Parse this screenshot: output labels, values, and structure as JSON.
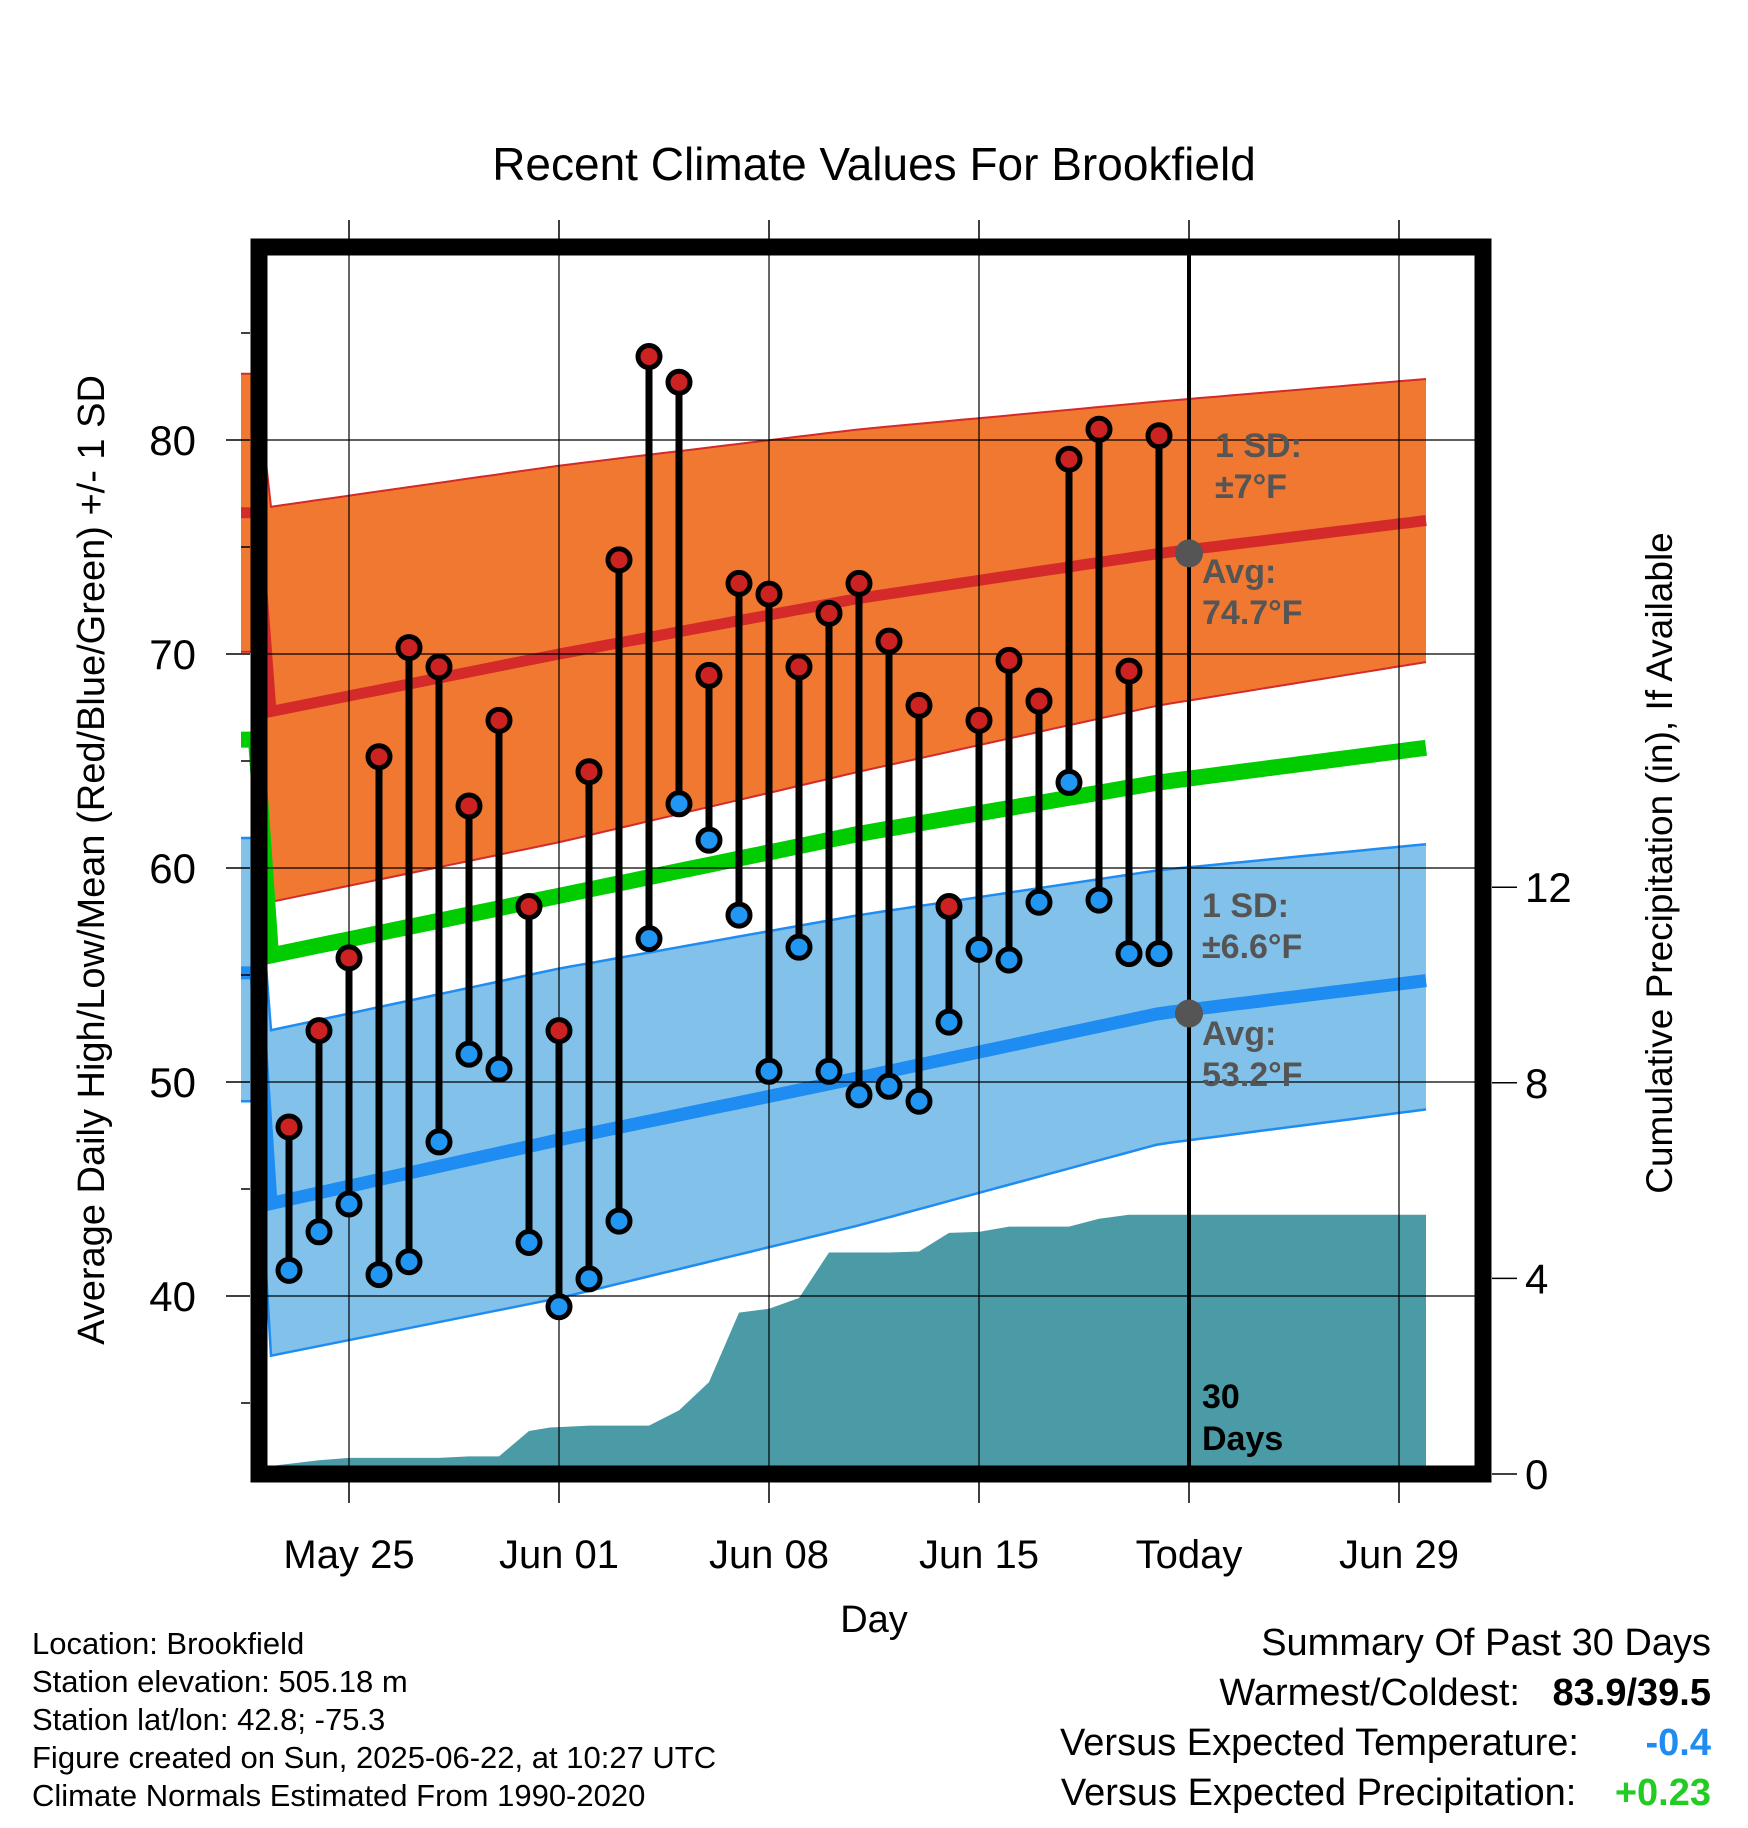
{
  "chart_data": {
    "type": "line",
    "title": "Recent Climate Values For Brookfield",
    "xlabel": "Day",
    "ylabel": "Average Daily High/Low/Mean (Red/Blue/Green) +/- 1 SD",
    "y2label": "Cumulative Precipitation (in), If Available",
    "ylim": [
      30.8,
      90.7
    ],
    "y2lim": [
      -0.07,
      24.1
    ],
    "xlim": [
      -11.75,
      30
    ],
    "yticks": [
      "40",
      "50",
      "60",
      "70",
      "80"
    ],
    "y2ticks": [
      "0",
      "4",
      "8",
      "12"
    ],
    "xticks": [
      {
        "day": 3,
        "label": "May 25"
      },
      {
        "day": 10,
        "label": "Jun 01"
      },
      {
        "day": 17,
        "label": "Jun 08"
      },
      {
        "day": 24,
        "label": "Jun 15"
      },
      {
        "day": 31,
        "label": "Today"
      },
      {
        "day": 38,
        "label": "Jun 29"
      }
    ],
    "today_day": 31,
    "days": [
      1,
      2,
      3,
      4,
      5,
      6,
      7,
      8,
      9,
      10,
      11,
      12,
      13,
      14,
      15,
      16,
      17,
      18,
      19,
      20,
      21,
      22,
      23,
      24,
      25,
      26,
      27,
      28,
      29,
      30
    ],
    "highs": [
      47.9,
      52.4,
      55.8,
      65.2,
      70.3,
      69.4,
      62.9,
      66.9,
      58.2,
      52.4,
      64.5,
      74.4,
      83.9,
      82.7,
      69.0,
      73.3,
      72.8,
      69.4,
      71.9,
      73.3,
      70.6,
      67.6,
      58.2,
      66.9,
      69.7,
      67.8,
      79.1,
      80.5,
      69.2,
      80.2
    ],
    "lows": [
      41.2,
      43.0,
      44.3,
      41.0,
      41.6,
      47.2,
      51.3,
      50.6,
      42.5,
      39.5,
      40.8,
      43.5,
      56.7,
      63.0,
      61.3,
      57.8,
      50.5,
      56.3,
      50.5,
      49.4,
      49.8,
      49.1,
      52.8,
      56.2,
      55.7,
      58.4,
      64.0,
      58.5,
      56.0,
      56.0
    ],
    "normals": {
      "days": [
        0,
        10,
        20,
        30,
        41
      ],
      "high_avg": [
        67.2,
        70.0,
        72.6,
        74.7,
        76.6
      ],
      "high_sd_upper": [
        76.8,
        78.8,
        80.5,
        81.8,
        83.1
      ],
      "high_sd_lower": [
        58.3,
        61.2,
        64.5,
        67.6,
        70.1
      ],
      "mean_avg": [
        55.8,
        58.7,
        61.6,
        64.0,
        66.0
      ],
      "low_avg": [
        44.2,
        47.3,
        50.2,
        53.2,
        55.1
      ],
      "low_sd_upper": [
        52.3,
        55.3,
        57.8,
        59.9,
        61.4
      ],
      "low_sd_lower": [
        37.1,
        39.9,
        43.3,
        47.1,
        49.1
      ]
    },
    "precip_cumulative": {
      "days": [
        0,
        0.6,
        2,
        3,
        4,
        5,
        6,
        7,
        8,
        9,
        9.7,
        10,
        11,
        12,
        13,
        14,
        15,
        16,
        17,
        18,
        19,
        20,
        21,
        22,
        23,
        24,
        25,
        26,
        27,
        28,
        29,
        30,
        31,
        41
      ],
      "values": [
        0,
        0.18,
        0.28,
        0.33,
        0.33,
        0.33,
        0.33,
        0.36,
        0.36,
        0.88,
        0.95,
        0.96,
        0.99,
        0.99,
        0.99,
        1.3,
        1.88,
        3.3,
        3.38,
        3.6,
        4.53,
        4.53,
        4.53,
        4.55,
        4.93,
        4.95,
        5.06,
        5.06,
        5.06,
        5.22,
        5.3,
        5.3,
        5.3,
        5.3
      ]
    },
    "annotations": {
      "high_sd_label": [
        "1 SD:",
        "±7°F"
      ],
      "high_avg_label": [
        "Avg:",
        "74.7°F"
      ],
      "low_sd_label": [
        "1 SD:",
        "±6.6°F"
      ],
      "low_avg_label": [
        "Avg:",
        "53.2°F"
      ],
      "today_window_label": [
        "30",
        "Days"
      ],
      "high_avg_today": 74.7,
      "low_avg_today": 53.2
    },
    "colors": {
      "high_band": "#f07830",
      "high_line": "#d42a2a",
      "low_band": "#82c2ea",
      "low_line": "#1e8cf0",
      "mean_line": "#00cc00",
      "precip": "#4a9ba6",
      "high_marker": "#cc2222",
      "low_marker": "#2196f3",
      "annotation_text": "#555555"
    }
  },
  "info": {
    "location": "Location: Brookfield",
    "elevation": "Station elevation: 505.18 m",
    "latlon": "Station lat/lon: 42.8; -75.3",
    "created": "Figure created on Sun, 2025-06-22, at 10:27 UTC",
    "normals": "Climate Normals Estimated From 1990-2020"
  },
  "summary": {
    "title": "Summary Of Past 30 Days",
    "warm_cold_label": "Warmest/Coldest:",
    "warm_cold_value": "83.9/39.5",
    "temp_label": "Versus Expected Temperature:",
    "temp_value": "-0.4",
    "temp_color": "#1e8cf0",
    "precip_label": "Versus Expected Precipitation:",
    "precip_value": "+0.23",
    "precip_color": "#22cc22"
  }
}
